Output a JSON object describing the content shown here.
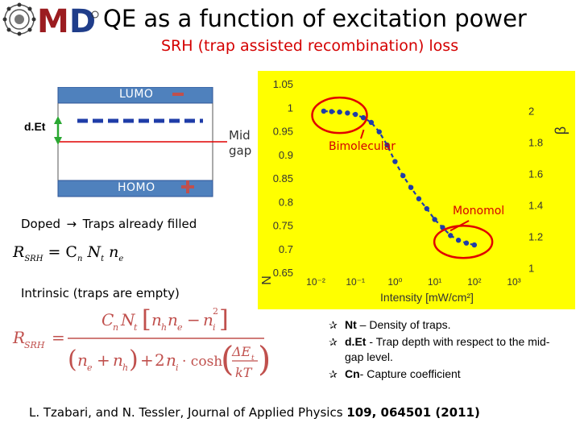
{
  "header": {
    "title": "QE as a function of excitation power",
    "subtitle": "SRH (trap assisted recombination) loss",
    "logo_text": "MD"
  },
  "band_diagram": {
    "lumo_label": "LUMO",
    "homo_label": "HOMO",
    "det_label": "d.Et",
    "midgap_label_line1": "Mid",
    "midgap_label_line2": "gap",
    "colors": {
      "band": "#4f81bd",
      "trap": "#1f3da8",
      "midgap": "#e00000",
      "arrow": "#2aa832",
      "sign": "#c0504d"
    }
  },
  "doped": {
    "text_before": "Doped",
    "text_after": "Traps already filled",
    "equation": {
      "lhs": "R",
      "lhs_sub": "SRH",
      "rhs": "= C",
      "rhs_sub1": "n",
      "mid": "N",
      "mid_sub1": "t",
      "end": "n",
      "end_sub": "e"
    }
  },
  "intrinsic": {
    "text": "Intrinsic (traps are empty)",
    "equation": {
      "lhs": "R",
      "lhs_sub": "SRH",
      "numerator": "C",
      "num_sub": "n",
      "num_N": "N",
      "num_N_sub": "t",
      "num_bracket": "n",
      "nh_sub": "h",
      "ne_sub": "e",
      "minus": "−",
      "ni": "n",
      "ni_sub": "i",
      "ni_sup": "2",
      "den_n1": "n",
      "den_e": "e",
      "plus": "+",
      "den_n2": "n",
      "den_h": "h",
      "two": "2",
      "den_ni": "n",
      "den_i": "i",
      "cosh": "· cosh",
      "dE": "ΔE",
      "dE_sub": "t",
      "kT": "kT"
    }
  },
  "chart_data": {
    "type": "scatter",
    "xlabel": "Intensity [mW/cm²]",
    "ylabel_left": "N",
    "ylabel_right": "β",
    "x_scale": "log",
    "x_ticks": [
      "10⁻²",
      "10⁻¹",
      "10⁰",
      "10¹",
      "10²",
      "10³"
    ],
    "y_left_ticks": [
      "1.05",
      "1",
      "0.95",
      "0.9",
      "0.85",
      "0.8",
      "0.75",
      "0.7",
      "0.65"
    ],
    "y_right_ticks": [
      "2",
      "1.8",
      "1.6",
      "1.4",
      "1.2",
      "1"
    ],
    "y_left_range": [
      0.65,
      1.05
    ],
    "y_right_range": [
      0.9,
      2.1
    ],
    "x_range": [
      -2,
      3
    ],
    "annotations": [
      "Bimolecular",
      "Monomol"
    ],
    "series": [
      {
        "values": [
          {
            "x": -1.8,
            "y": 0.992
          },
          {
            "x": -1.6,
            "y": 0.991
          },
          {
            "x": -1.4,
            "y": 0.99
          },
          {
            "x": -1.2,
            "y": 0.988
          },
          {
            "x": -1.0,
            "y": 0.985
          },
          {
            "x": -0.8,
            "y": 0.978
          },
          {
            "x": -0.6,
            "y": 0.968
          },
          {
            "x": -0.4,
            "y": 0.948
          },
          {
            "x": -0.2,
            "y": 0.92
          },
          {
            "x": 0.0,
            "y": 0.885
          },
          {
            "x": 0.2,
            "y": 0.855
          },
          {
            "x": 0.4,
            "y": 0.83
          },
          {
            "x": 0.6,
            "y": 0.806
          },
          {
            "x": 0.8,
            "y": 0.785
          },
          {
            "x": 1.0,
            "y": 0.762
          },
          {
            "x": 1.2,
            "y": 0.745
          },
          {
            "x": 1.4,
            "y": 0.728
          },
          {
            "x": 1.6,
            "y": 0.718
          },
          {
            "x": 1.8,
            "y": 0.712
          },
          {
            "x": 2.0,
            "y": 0.708
          }
        ]
      }
    ]
  },
  "bullets": [
    {
      "bold": "Nt",
      "rest": " – Density of traps."
    },
    {
      "bold": "d.Et",
      "rest": " - Trap depth with respect to the mid-gap level."
    },
    {
      "bold": "Cn",
      "rest": "- Capture coefficient"
    }
  ],
  "reference": {
    "text": "L. Tzabari, and N. Tessler, Journal of Applied Physics ",
    "volume": "109",
    "pages": ", 064501 (2011)"
  }
}
